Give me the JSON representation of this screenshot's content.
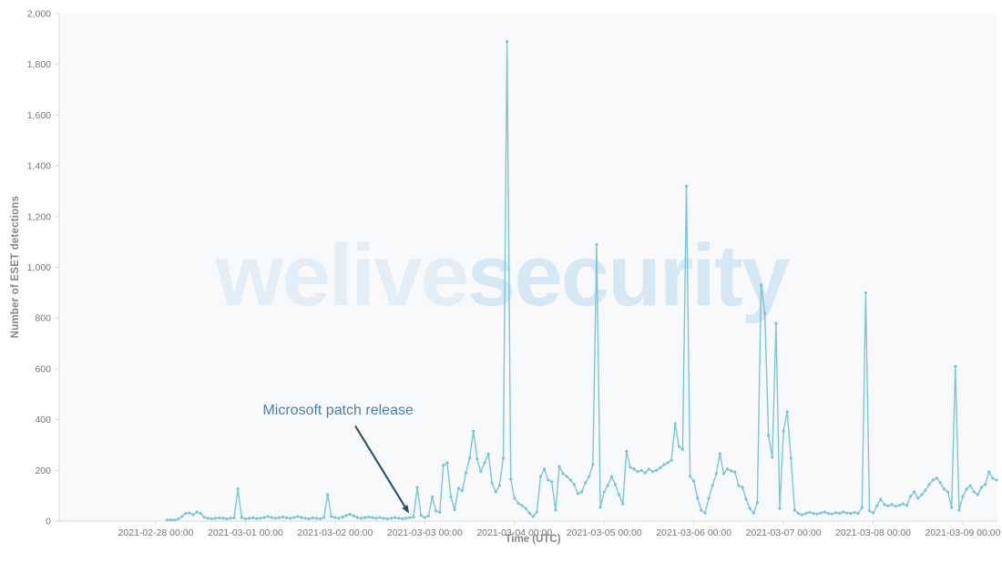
{
  "colors": {
    "line": "#7cc5d9",
    "marker": "#7cc5d9",
    "plot_background": "#f8f9fb",
    "axis_line": "#d8dade",
    "tick_text": "#73767c",
    "axis_title_text": "#85868d",
    "annotation_text": "#4a81ad",
    "annotation_arrow": "#2d506b",
    "watermark_light": "#e3eef7",
    "watermark_dark": "#d6e8f3"
  },
  "watermark": {
    "light_text": "welive",
    "dark_text": "security"
  },
  "chart_data": {
    "type": "line",
    "title": "",
    "xlabel": "Time (UTC)",
    "ylabel": "Number of ESET detections",
    "ylim": [
      0,
      2000
    ],
    "grid": false,
    "legend": "none",
    "y_tick_values": [
      0,
      200,
      400,
      600,
      800,
      1000,
      1200,
      1400,
      1600,
      1800,
      2000
    ],
    "y_tick_labels": [
      "0",
      "200",
      "400",
      "600",
      "800",
      "1,000",
      "1,200",
      "1,400",
      "1,600",
      "1,800",
      "2,000"
    ],
    "x_tick_hours": [
      0,
      24,
      48,
      72,
      96,
      120,
      144,
      168,
      192,
      216
    ],
    "x_tick_labels": [
      "2021-02-28 00:00",
      "2021-03-01 00:00",
      "2021-03-02 00:00",
      "2021-03-03 00:00",
      "2021-03-04 00:00",
      "2021-03-05 00:00",
      "2021-03-06 00:00",
      "2021-03-07 00:00",
      "2021-03-08 00:00",
      "2021-03-09 00:00"
    ],
    "series": [
      {
        "name": "ESET detections",
        "start_hour": 3,
        "interval_hours": 1,
        "values": [
          4,
          5,
          4,
          8,
          18,
          30,
          32,
          25,
          36,
          30,
          15,
          11,
          9,
          11,
          13,
          11,
          9,
          11,
          13,
          126,
          14,
          9,
          11,
          13,
          10,
          11,
          14,
          18,
          14,
          11,
          13,
          16,
          13,
          11,
          14,
          18,
          14,
          11,
          9,
          13,
          11,
          9,
          14,
          104,
          18,
          14,
          11,
          16,
          22,
          27,
          20,
          14,
          11,
          14,
          16,
          14,
          11,
          14,
          11,
          9,
          11,
          14,
          11,
          9,
          11,
          14,
          16,
          133,
          22,
          14,
          20,
          95,
          40,
          35,
          220,
          230,
          95,
          45,
          130,
          120,
          190,
          250,
          355,
          245,
          195,
          230,
          265,
          150,
          115,
          140,
          248,
          1890,
          165,
          90,
          70,
          61,
          50,
          32,
          18,
          36,
          176,
          205,
          162,
          155,
          43,
          215,
          187,
          176,
          162,
          144,
          108,
          115,
          151,
          176,
          223,
          1090,
          55,
          115,
          140,
          176,
          144,
          104,
          68,
          276,
          212,
          205,
          195,
          200,
          190,
          205,
          195,
          200,
          210,
          222,
          230,
          240,
          384,
          294,
          283,
          1320,
          176,
          158,
          90,
          43,
          32,
          90,
          140,
          187,
          266,
          187,
          205,
          198,
          194,
          140,
          133,
          86,
          50,
          32,
          72,
          930,
          820,
          337,
          251,
          779,
          50,
          355,
          431,
          248,
          43,
          30,
          25,
          30,
          35,
          30,
          28,
          32,
          36,
          30,
          28,
          33,
          30,
          36,
          32,
          30,
          34,
          30,
          54,
          900,
          40,
          32,
          60,
          86,
          65,
          60,
          65,
          58,
          62,
          68,
          62,
          97,
          115,
          90,
          104,
          122,
          144,
          162,
          169,
          151,
          126,
          115,
          54,
          610,
          43,
          97,
          126,
          140,
          115,
          104,
          133,
          144,
          194,
          169,
          162
        ]
      }
    ],
    "annotation": {
      "text": "Microsoft patch release",
      "text_hour": 48.8,
      "text_value": 434,
      "arrow_from_hour": 53.4,
      "arrow_from_value": 375,
      "arrow_to_hour": 67.8,
      "arrow_to_value": 30
    }
  }
}
